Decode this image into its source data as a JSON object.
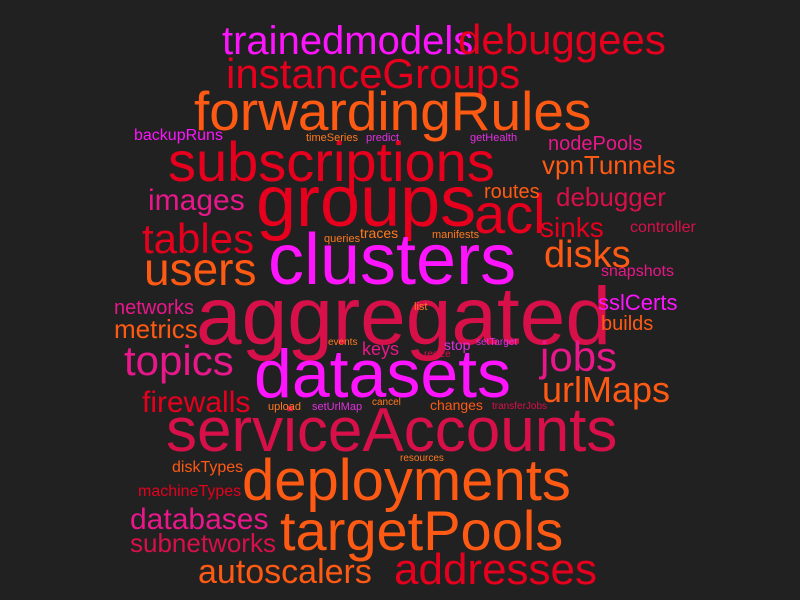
{
  "colors": {
    "background": "#212121",
    "red": "#e6001e",
    "orange": "#ff5a14",
    "pink": "#e8178a",
    "magenta": "#ff14ff"
  },
  "words": {
    "aggregated": "aggregated",
    "serviceAccounts": "serviceAccounts",
    "clusters": "clusters",
    "datasets": "datasets",
    "deployments": "deployments",
    "groups": "groups",
    "subscriptions": "subscriptions",
    "forwardingRules": "forwardingRules",
    "targetPools": "targetPools",
    "instanceGroups": "instanceGroups",
    "acl": "acl",
    "addresses": "addresses",
    "debuggees": "debuggees",
    "trainedmodels": "trainedmodels",
    "users": "users",
    "tables": "tables",
    "topics": "topics",
    "jobs": "jobs",
    "disks": "disks",
    "urlMaps": "urlMaps",
    "images": "images",
    "firewalls": "firewalls",
    "databases": "databases",
    "autoscalers": "autoscalers",
    "subnetworks": "subnetworks",
    "sinks": "sinks",
    "debugger": "debugger",
    "vpnTunnels": "vpnTunnels",
    "nodePools": "nodePools",
    "sslCerts": "sslCerts",
    "metrics": "metrics",
    "networks": "networks",
    "routes": "routes",
    "builds": "builds",
    "snapshots": "snapshots",
    "controller": "controller",
    "diskTypes": "diskTypes",
    "machineTypes": "machineTypes",
    "backupRuns": "backupRuns",
    "keys": "keys",
    "traces": "traces",
    "manifests": "manifests",
    "queries": "queries",
    "changes": "changes",
    "stop": "stop",
    "resources": "resources",
    "transferJobs": "transferJobs",
    "setTarget": "setTarget",
    "resize": "resize",
    "events": "events",
    "list": "list",
    "upload": "upload",
    "setUrlMap": "setUrlMap",
    "cancel": "cancel",
    "timeSeries": "timeSeries",
    "predict": "predict",
    "getHealth": "getHealth"
  }
}
